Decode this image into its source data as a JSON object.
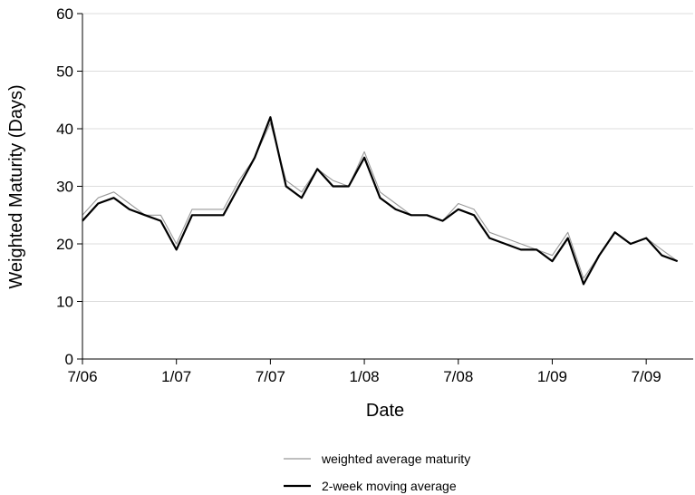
{
  "chart_data": {
    "type": "line",
    "title": "",
    "xlabel": "Date",
    "ylabel": "Weighted Maturity (Days)",
    "ylim": [
      0,
      60
    ],
    "y_ticks": [
      0,
      10,
      20,
      30,
      40,
      50,
      60
    ],
    "xlim": [
      "2006-07",
      "2009-10"
    ],
    "x_ticks": [
      {
        "date": "2006-07",
        "label": "7/06"
      },
      {
        "date": "2007-01",
        "label": "1/07"
      },
      {
        "date": "2007-07",
        "label": "7/07"
      },
      {
        "date": "2008-01",
        "label": "1/08"
      },
      {
        "date": "2008-07",
        "label": "7/08"
      },
      {
        "date": "2009-01",
        "label": "1/09"
      },
      {
        "date": "2009-07",
        "label": "7/09"
      }
    ],
    "grid": "horizontal",
    "legend": "bottom",
    "series": [
      {
        "name": "weighted average maturity",
        "color": "#999999",
        "x": [
          "2006-07",
          "2006-08",
          "2006-09",
          "2006-10",
          "2006-11",
          "2006-12",
          "2007-01",
          "2007-02",
          "2007-03",
          "2007-04",
          "2007-05",
          "2007-06",
          "2007-07",
          "2007-08",
          "2007-09",
          "2007-10",
          "2007-11",
          "2007-12",
          "2008-01",
          "2008-02",
          "2008-03",
          "2008-04",
          "2008-05",
          "2008-06",
          "2008-07",
          "2008-08",
          "2008-09",
          "2008-10",
          "2008-11",
          "2008-12",
          "2009-01",
          "2009-02",
          "2009-03",
          "2009-04",
          "2009-05",
          "2009-06",
          "2009-07",
          "2009-08",
          "2009-09"
        ],
        "y": [
          25,
          28,
          29,
          27,
          25,
          25,
          20,
          26,
          26,
          26,
          31,
          35,
          41,
          31,
          29,
          33,
          31,
          30,
          36,
          29,
          27,
          25,
          25,
          24,
          27,
          26,
          22,
          21,
          20,
          19,
          18,
          22,
          14,
          18,
          22,
          20,
          21,
          19,
          17
        ]
      },
      {
        "name": "2-week moving average",
        "color": "#000000",
        "x": [
          "2006-07",
          "2006-08",
          "2006-09",
          "2006-10",
          "2006-11",
          "2006-12",
          "2007-01",
          "2007-02",
          "2007-03",
          "2007-04",
          "2007-05",
          "2007-06",
          "2007-07",
          "2007-08",
          "2007-09",
          "2007-10",
          "2007-11",
          "2007-12",
          "2008-01",
          "2008-02",
          "2008-03",
          "2008-04",
          "2008-05",
          "2008-06",
          "2008-07",
          "2008-08",
          "2008-09",
          "2008-10",
          "2008-11",
          "2008-12",
          "2009-01",
          "2009-02",
          "2009-03",
          "2009-04",
          "2009-05",
          "2009-06",
          "2009-07",
          "2009-08",
          "2009-09"
        ],
        "y": [
          24,
          27,
          28,
          26,
          25,
          24,
          19,
          25,
          25,
          25,
          30,
          35,
          42,
          30,
          28,
          33,
          30,
          30,
          35,
          28,
          26,
          25,
          25,
          24,
          26,
          25,
          21,
          20,
          19,
          19,
          17,
          21,
          13,
          18,
          22,
          20,
          21,
          18,
          17
        ]
      }
    ]
  }
}
